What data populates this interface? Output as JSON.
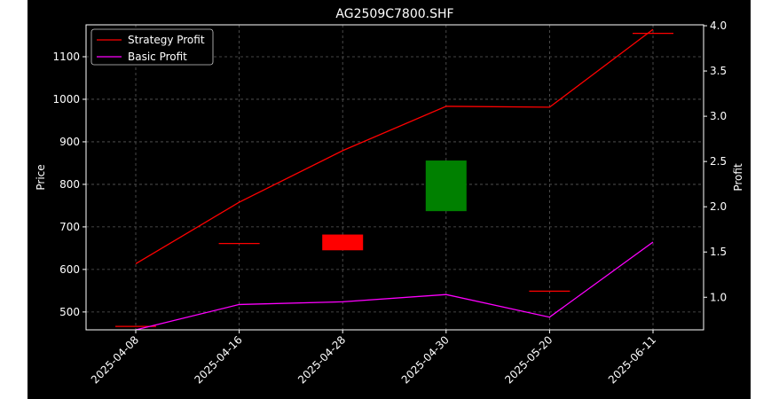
{
  "chart_data": {
    "type": "candlestick+line",
    "title": "AG2509C7800.SHF",
    "xlabel": "",
    "ylabel": "Price",
    "ylabel_right": "Profit",
    "categories": [
      "2025-04-08",
      "2025-04-16",
      "2025-04-28",
      "2025-04-30",
      "2025-05-20",
      "2025-06-11"
    ],
    "ylim": [
      458,
      1175
    ],
    "yticks": [
      500,
      600,
      700,
      800,
      900,
      1000,
      1100
    ],
    "ylim_right": [
      0.64,
      4.01
    ],
    "yticks_right": [
      1.0,
      1.5,
      2.0,
      2.5,
      3.0,
      3.5,
      4.0
    ],
    "grid": true,
    "legend_position": "top-left",
    "candles": [
      {
        "date": "2025-04-08",
        "open": 466,
        "close": 466,
        "high": 466,
        "low": 466,
        "color": "#ff0000"
      },
      {
        "date": "2025-04-16",
        "open": 661,
        "close": 661,
        "high": 661,
        "low": 661,
        "color": "#ff0000"
      },
      {
        "date": "2025-04-28",
        "open": 682,
        "close": 645,
        "high": 682,
        "low": 645,
        "color": "#ff0000"
      },
      {
        "date": "2025-04-30",
        "open": 737,
        "close": 856,
        "high": 856,
        "low": 737,
        "color": "#008000"
      },
      {
        "date": "2025-05-20",
        "open": 549,
        "close": 549,
        "high": 549,
        "low": 549,
        "color": "#ff0000"
      },
      {
        "date": "2025-06-11",
        "open": 1155,
        "close": 1155,
        "high": 1155,
        "low": 1155,
        "color": "#ff0000"
      }
    ],
    "series": [
      {
        "name": "Strategy Profit",
        "color": "#ff0000",
        "axis": "right",
        "values": [
          1.37,
          2.05,
          2.62,
          3.11,
          3.1,
          3.96
        ]
      },
      {
        "name": "Basic Profit",
        "color": "#ff00ff",
        "axis": "right",
        "values": [
          0.64,
          0.92,
          0.95,
          1.03,
          0.78,
          1.61
        ]
      }
    ]
  },
  "colors": {
    "background": "#000000",
    "outer_background": "#ffffff",
    "grid": "#5a5a5a",
    "text": "#ffffff"
  }
}
